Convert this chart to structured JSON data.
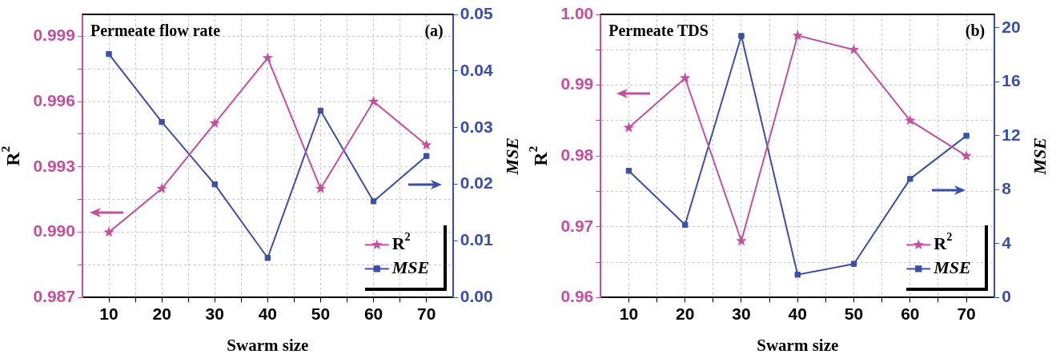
{
  "chart_data": [
    {
      "type": "line",
      "title": "Permeate flow rate",
      "xlabel": "Swarm size",
      "ylabel": "R$^{2}$",
      "y2label": "MSE",
      "annotations": [
        "(a)"
      ],
      "x": [
        10,
        20,
        30,
        40,
        50,
        60,
        70
      ],
      "series": [
        {
          "name": "R$^{2}$",
          "color": "#c2509f",
          "marker": "star",
          "values": [
            0.99,
            0.992,
            0.995,
            0.998,
            0.992,
            0.996,
            0.994
          ]
        },
        {
          "name": "MSE",
          "color": "#3b4fa6",
          "marker": "square",
          "axis": "y2",
          "values": [
            0.043,
            0.031,
            0.02,
            0.007,
            0.033,
            0.017,
            0.025
          ]
        }
      ],
      "xlim": [
        5,
        75
      ],
      "xticks": [
        10,
        {
          "value": 15,
          "label": null
        },
        20,
        {
          "value": 25,
          "label": null
        },
        30,
        {
          "value": 35,
          "label": null
        },
        40,
        {
          "value": 45,
          "label": null
        },
        50,
        {
          "value": 55,
          "label": null
        },
        60,
        {
          "value": 65,
          "label": null
        },
        70
      ],
      "ylim": [
        0.987,
        1.0
      ],
      "yticks": [
        {
          "value": 0.987,
          "label": "0.987"
        },
        {
          "value": 0.9885,
          "label": null
        },
        {
          "value": 0.99,
          "label": "0.990"
        },
        {
          "value": 0.9915,
          "label": null
        },
        {
          "value": 0.993,
          "label": "0.993"
        },
        {
          "value": 0.9945,
          "label": null
        },
        {
          "value": 0.996,
          "label": "0.996"
        },
        {
          "value": 0.9975,
          "label": null
        },
        {
          "value": 0.999,
          "label": "0.999"
        }
      ],
      "y2lim": [
        0,
        0.05
      ],
      "y2ticks": [
        {
          "value": 0,
          "label": "0.00"
        },
        {
          "value": 0.01,
          "label": "0.01"
        },
        {
          "value": 0.02,
          "label": "0.02"
        },
        {
          "value": 0.03,
          "label": "0.03"
        },
        {
          "value": 0.04,
          "label": "0.04"
        },
        {
          "value": 0.05,
          "label": "0.05"
        }
      ],
      "grid": true,
      "legend": "bottom right",
      "line_style": "solid"
    },
    {
      "type": "line",
      "title": "Permeate TDS",
      "xlabel": "Swarm size",
      "ylabel": "R$^{2}$",
      "y2label": "MSE",
      "annotations": [
        "(b)"
      ],
      "x": [
        10,
        20,
        30,
        40,
        50,
        60,
        70
      ],
      "series": [
        {
          "name": "R$^{2}$",
          "color": "#c2509f",
          "marker": "star",
          "values": [
            0.984,
            0.991,
            0.968,
            0.997,
            0.995,
            0.985,
            0.98
          ]
        },
        {
          "name": "MSE",
          "color": "#3b4fa6",
          "marker": "square",
          "axis": "y2",
          "values": [
            9.4,
            5.4,
            19.4,
            1.7,
            2.5,
            8.8,
            12.0
          ]
        }
      ],
      "xlim": [
        5,
        75
      ],
      "xticks": [
        10,
        {
          "value": 15,
          "label": null
        },
        20,
        {
          "value": 25,
          "label": null
        },
        30,
        {
          "value": 35,
          "label": null
        },
        40,
        {
          "value": 45,
          "label": null
        },
        50,
        {
          "value": 55,
          "label": null
        },
        60,
        {
          "value": 65,
          "label": null
        },
        70
      ],
      "ylim": [
        0.96,
        1.0
      ],
      "yticks": [
        0.96,
        {
          "value": 0.965,
          "label": null
        },
        0.97,
        {
          "value": 0.975,
          "label": null
        },
        0.98,
        {
          "value": 0.985,
          "label": null
        },
        0.99,
        {
          "value": 0.995,
          "label": null
        },
        {
          "value": 1.0,
          "label": "1.00"
        }
      ],
      "y2lim": [
        0,
        21
      ],
      "y2ticks": [
        0,
        4,
        8,
        12,
        16,
        20
      ],
      "grid": true,
      "legend": "bottom right",
      "line_style": "solid"
    }
  ]
}
